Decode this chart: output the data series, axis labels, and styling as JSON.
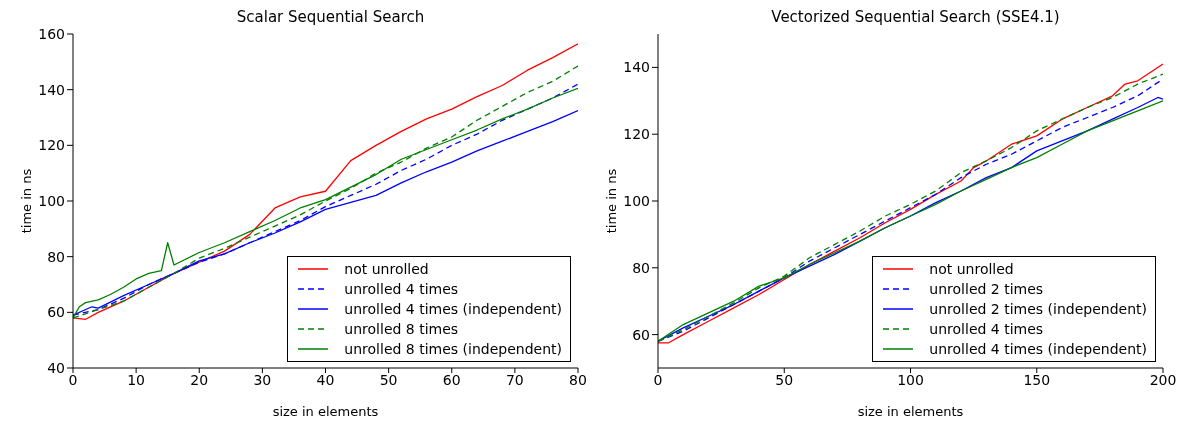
{
  "chart_data": [
    {
      "type": "line",
      "title": "Scalar Sequential Search",
      "xlabel": "size in elements",
      "ylabel": "time in ns",
      "xlim": [
        0,
        80
      ],
      "xticks": [
        0,
        10,
        20,
        30,
        40,
        50,
        60,
        70,
        80
      ],
      "ylim": [
        40,
        160
      ],
      "yticks": [
        40,
        60,
        80,
        100,
        120,
        140,
        160
      ],
      "legend": "bottom right",
      "grid": false,
      "series": [
        {
          "name": "not unrolled",
          "color": "#ff0000",
          "x": [
            0,
            2,
            4,
            8,
            12,
            16,
            20,
            24,
            28,
            32,
            36,
            40,
            44,
            48,
            52,
            56,
            60,
            64,
            68,
            72,
            76,
            80
          ],
          "values": [
            58,
            57.5,
            60,
            64,
            69,
            74,
            78,
            82,
            88,
            97.5,
            101.5,
            103.5,
            114.5,
            120,
            125,
            129.5,
            133,
            137.5,
            141.5,
            147,
            151.5,
            156.5
          ]
        },
        {
          "name": "unrolled 4 times",
          "color": "#0000ff",
          "line_style": "dashed",
          "x": [
            0,
            4,
            8,
            12,
            16,
            20,
            24,
            28,
            32,
            36,
            40,
            44,
            48,
            52,
            56,
            60,
            64,
            68,
            72,
            76,
            80
          ],
          "values": [
            59,
            61,
            65,
            70,
            74,
            78,
            81,
            85,
            89,
            93,
            98,
            102,
            106,
            111,
            115,
            120,
            124,
            129,
            133,
            137,
            142
          ]
        },
        {
          "name": "unrolled 4 times (independent)",
          "color": "#0000ff",
          "x": [
            0,
            3,
            4,
            8,
            12,
            16,
            20,
            24,
            28,
            32,
            36,
            40,
            44,
            48,
            52,
            56,
            60,
            64,
            68,
            72,
            76,
            80
          ],
          "values": [
            59,
            62,
            61.5,
            66,
            70,
            74,
            78.5,
            81,
            85,
            88.5,
            92.5,
            97,
            99.5,
            102,
            106.5,
            110.5,
            114,
            118,
            121.5,
            125,
            128.5,
            132.5
          ]
        },
        {
          "name": "unrolled 8 times",
          "color": "#008000",
          "line_style": "dashed",
          "x": [
            0,
            4,
            8,
            12,
            16,
            20,
            24,
            28,
            32,
            36,
            40,
            44,
            48,
            52,
            56,
            60,
            64,
            68,
            72,
            76,
            80
          ],
          "values": [
            58,
            61,
            64,
            69,
            74,
            79.5,
            83,
            87,
            91,
            95,
            100,
            104.5,
            110,
            114,
            119,
            123,
            129,
            134,
            139,
            143,
            148.5
          ]
        },
        {
          "name": "unrolled 8 times (independent)",
          "color": "#008000",
          "x": [
            0,
            1,
            2,
            4,
            6,
            8,
            10,
            12,
            14,
            15,
            16,
            20,
            24,
            28,
            32,
            36,
            40,
            44,
            48,
            52,
            56,
            60,
            64,
            68,
            72,
            76,
            80
          ],
          "values": [
            58,
            62,
            63.5,
            64.5,
            66.5,
            69,
            72,
            74,
            75,
            85,
            77,
            81.5,
            85,
            89,
            93,
            97.5,
            100.5,
            105,
            109.5,
            115,
            118.5,
            122,
            125.5,
            129.5,
            133,
            137,
            140.5
          ]
        }
      ]
    },
    {
      "type": "line",
      "title": "Vectorized Sequential Search (SSE4.1)",
      "xlabel": "size in elements",
      "ylabel": "time in ns",
      "xlim": [
        0,
        200
      ],
      "xticks": [
        0,
        50,
        100,
        150,
        200
      ],
      "ylim": [
        50,
        150
      ],
      "yticks": [
        60,
        80,
        100,
        120,
        140
      ],
      "legend": "bottom right",
      "grid": false,
      "series": [
        {
          "name": "not unrolled",
          "color": "#ff0000",
          "x": [
            0,
            4,
            10,
            20,
            30,
            40,
            50,
            60,
            70,
            80,
            90,
            100,
            110,
            120,
            125,
            130,
            140,
            150,
            160,
            170,
            180,
            185,
            190,
            200
          ],
          "values": [
            57.5,
            57.5,
            60,
            64,
            68,
            72,
            76.5,
            81,
            85,
            89,
            93.5,
            97.5,
            102,
            106,
            110,
            112,
            117,
            119.5,
            124.5,
            128,
            131.5,
            135,
            136,
            141
          ]
        },
        {
          "name": "unrolled 2 times",
          "color": "#0000ff",
          "line_style": "dashed",
          "x": [
            0,
            10,
            20,
            30,
            40,
            50,
            60,
            70,
            80,
            90,
            100,
            110,
            120,
            130,
            140,
            150,
            160,
            170,
            180,
            190,
            200
          ],
          "values": [
            58,
            61,
            65,
            69,
            73,
            77,
            82,
            86,
            90,
            94,
            98,
            102,
            107,
            111,
            114,
            118,
            122,
            125,
            128,
            131.5,
            136.5
          ]
        },
        {
          "name": "unrolled 2 times (independent)",
          "color": "#0000ff",
          "x": [
            0,
            10,
            20,
            30,
            40,
            50,
            60,
            70,
            80,
            90,
            100,
            110,
            120,
            130,
            140,
            150,
            160,
            170,
            180,
            190,
            198,
            200
          ],
          "values": [
            58,
            62,
            65.5,
            69,
            73,
            77,
            80.5,
            84,
            88,
            92,
            95.5,
            99.5,
            103,
            107,
            110,
            115,
            118,
            121,
            124.5,
            128,
            131,
            130.5
          ]
        },
        {
          "name": "unrolled 4 times",
          "color": "#008000",
          "line_style": "dashed",
          "x": [
            0,
            10,
            20,
            30,
            40,
            50,
            60,
            70,
            80,
            90,
            100,
            110,
            120,
            130,
            140,
            150,
            160,
            170,
            180,
            190,
            200
          ],
          "values": [
            58,
            61.5,
            65.5,
            69.5,
            74,
            77.5,
            83,
            87,
            91,
            95.5,
            99,
            103,
            108.5,
            112,
            116,
            121,
            124.5,
            128,
            131,
            135,
            138
          ]
        },
        {
          "name": "unrolled 4 times (independent)",
          "color": "#008000",
          "x": [
            0,
            10,
            20,
            30,
            40,
            50,
            60,
            70,
            80,
            90,
            100,
            110,
            120,
            130,
            140,
            150,
            160,
            170,
            180,
            190,
            200
          ],
          "values": [
            58,
            63,
            66.5,
            70,
            74.5,
            77,
            81,
            84.5,
            88,
            92,
            95.5,
            99,
            103,
            106.5,
            110,
            113,
            117,
            121,
            124,
            127,
            130
          ]
        }
      ]
    }
  ]
}
